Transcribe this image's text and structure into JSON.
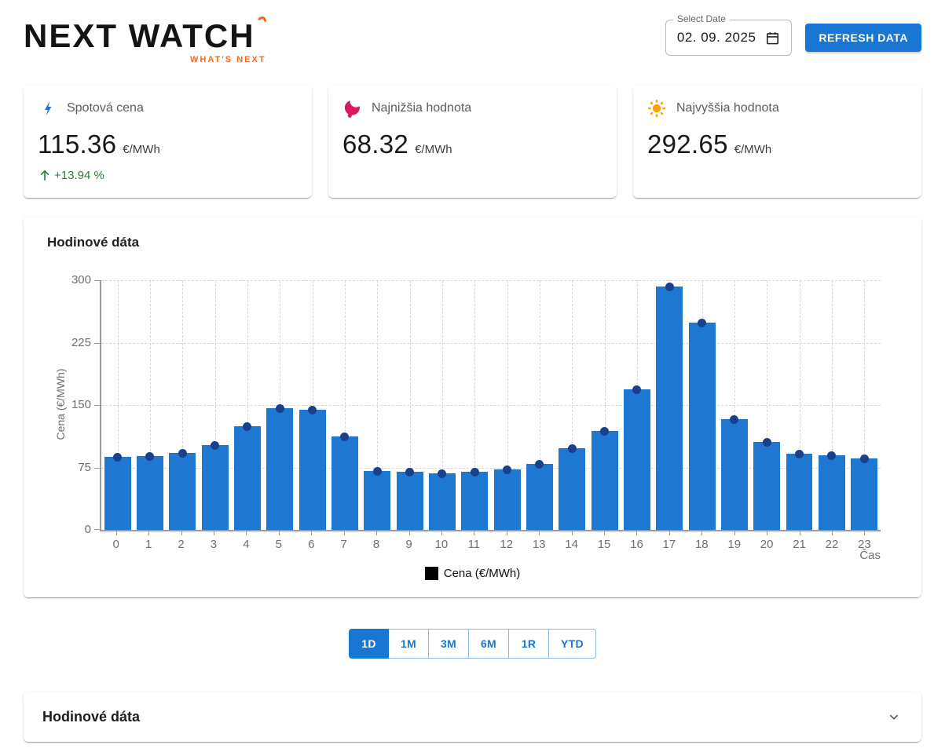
{
  "header": {
    "logo_text": "NEXT WATCH",
    "logo_tagline": "WHAT'S NEXT",
    "date_label": "Select Date",
    "date_value": "02. 09. 2025",
    "refresh_label": "REFRESH DATA"
  },
  "stats": {
    "spot": {
      "label": "Spotová cena",
      "value": "115.36",
      "unit": "€/MWh",
      "change": "+13.94 %"
    },
    "min": {
      "label": "Najnižšia hodnota",
      "value": "68.32",
      "unit": "€/MWh"
    },
    "max": {
      "label": "Najvyššia hodnota",
      "value": "292.65",
      "unit": "€/MWh"
    }
  },
  "chart_card": {
    "title": "Hodinové dáta"
  },
  "chart_data": {
    "type": "bar",
    "title": "Hodinové dáta",
    "categories": [
      "0",
      "1",
      "2",
      "3",
      "4",
      "5",
      "6",
      "7",
      "8",
      "9",
      "10",
      "11",
      "12",
      "13",
      "14",
      "15",
      "16",
      "17",
      "18",
      "19",
      "20",
      "21",
      "22",
      "23"
    ],
    "values": [
      88,
      89,
      92,
      102,
      125,
      146.5,
      144,
      112,
      70.5,
      69.5,
      68.32,
      70,
      73,
      79,
      98,
      118.5,
      168.5,
      292.65,
      249,
      133,
      106,
      91.5,
      90,
      86
    ],
    "xlabel": "Čas",
    "ylabel": "Cena (€/MWh)",
    "legend": [
      "Cena (€/MWh)"
    ],
    "ylim": [
      0,
      300
    ],
    "yticks": [
      0,
      75,
      150,
      225,
      300
    ],
    "grid": true,
    "legend_position": "bottom",
    "bar_color": "#1e78d2",
    "point_color": "#17418f"
  },
  "range_buttons": [
    {
      "label": "1D",
      "active": true
    },
    {
      "label": "1M",
      "active": false
    },
    {
      "label": "3M",
      "active": false
    },
    {
      "label": "6M",
      "active": false
    },
    {
      "label": "1R",
      "active": false
    },
    {
      "label": "YTD",
      "active": false
    }
  ],
  "accordion": {
    "title": "Hodinové dáta"
  },
  "colors": {
    "primary": "#1976d2",
    "success": "#2e7d32",
    "min_icon": "#d81b60",
    "max_icon": "#ffa000",
    "logo_accent": "#f4691e",
    "bar": "#1e78d2",
    "dot": "#17418f"
  }
}
